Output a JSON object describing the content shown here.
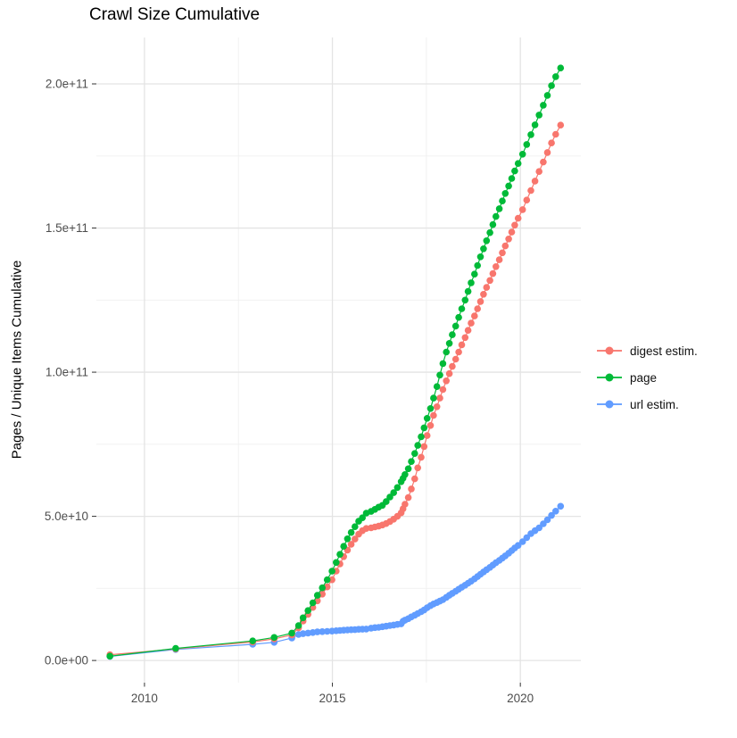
{
  "chart_data": {
    "type": "line",
    "title": "Crawl Size Cumulative",
    "xlabel": "",
    "ylabel": "Pages / Unique Items Cumulative",
    "legend_position": "right",
    "grid": true,
    "x_axis": {
      "tick_values": [
        2010,
        2015,
        2020
      ],
      "tick_labels": [
        "2010",
        "2015",
        "2020"
      ],
      "minor_tick_values": [
        2012.5,
        2017.5
      ],
      "range": [
        2008.72,
        2021.61
      ]
    },
    "y_axis": {
      "unit_note": "values stored in billions (1e9 items)",
      "tick_values_e9": [
        0,
        50,
        100,
        150,
        200
      ],
      "tick_labels": [
        "0.0e+00",
        "5.0e+10",
        "1.0e+11",
        "1.5e+11",
        "2.0e+11"
      ],
      "minor_tick_values_e9": [
        25,
        75,
        125,
        175
      ],
      "range_e9": [
        -7.7,
        216.1
      ]
    },
    "x": [
      2009.08,
      2010.83,
      2012.88,
      2013.45,
      2013.92,
      2014.1,
      2014.22,
      2014.35,
      2014.48,
      2014.6,
      2014.73,
      2014.86,
      2014.99,
      2015.1,
      2015.2,
      2015.3,
      2015.4,
      2015.5,
      2015.6,
      2015.7,
      2015.8,
      2015.9,
      2016.03,
      2016.13,
      2016.23,
      2016.33,
      2016.43,
      2016.53,
      2016.63,
      2016.73,
      2016.83,
      2016.88,
      2016.93,
      2017.02,
      2017.1,
      2017.19,
      2017.27,
      2017.36,
      2017.44,
      2017.52,
      2017.61,
      2017.69,
      2017.78,
      2017.86,
      2017.94,
      2018.03,
      2018.11,
      2018.19,
      2018.28,
      2018.36,
      2018.44,
      2018.53,
      2018.61,
      2018.69,
      2018.78,
      2018.86,
      2018.94,
      2019.02,
      2019.1,
      2019.19,
      2019.27,
      2019.35,
      2019.44,
      2019.52,
      2019.6,
      2019.69,
      2019.77,
      2019.85,
      2019.94,
      2020.06,
      2020.17,
      2020.28,
      2020.39,
      2020.5,
      2020.61,
      2020.72,
      2020.83,
      2020.94,
      2021.07
    ],
    "series": [
      {
        "name": "digest estim.",
        "color": "#F8766D",
        "values_e9": [
          2.0,
          4.0,
          6.4,
          7.5,
          8.9,
          11.3,
          13.7,
          16.0,
          18.4,
          20.7,
          23.0,
          25.5,
          28.0,
          31.0,
          33.5,
          36.0,
          38.3,
          40.3,
          42.1,
          43.8,
          45.0,
          45.8,
          46.0,
          46.3,
          46.6,
          47.0,
          47.5,
          48.2,
          49.0,
          50.0,
          51.2,
          52.6,
          54.2,
          56.5,
          59.5,
          63.0,
          66.8,
          70.5,
          74.2,
          78.0,
          81.5,
          85.0,
          88.0,
          91.0,
          94.0,
          97.0,
          99.5,
          102.0,
          104.5,
          107.0,
          109.5,
          112.0,
          114.5,
          117.0,
          119.5,
          122.0,
          124.5,
          127.0,
          129.4,
          131.8,
          134.2,
          136.6,
          139.0,
          141.4,
          143.8,
          146.2,
          148.6,
          151.0,
          153.4,
          156.4,
          159.7,
          163.0,
          166.3,
          169.6,
          172.9,
          176.2,
          179.5,
          182.5,
          185.7
        ]
      },
      {
        "name": "page",
        "color": "#00BA38",
        "values_e9": [
          1.5,
          4.2,
          6.8,
          8.0,
          9.5,
          12.1,
          14.8,
          17.3,
          20.0,
          22.6,
          25.2,
          28.0,
          31.0,
          34.0,
          36.8,
          39.6,
          42.2,
          44.4,
          46.4,
          48.3,
          49.5,
          51.1,
          51.7,
          52.4,
          53.2,
          53.8,
          55.1,
          56.7,
          58.2,
          60.0,
          62.0,
          63.2,
          64.5,
          66.5,
          69.0,
          71.8,
          74.6,
          77.6,
          80.7,
          84.0,
          87.4,
          91.0,
          95.0,
          99.0,
          103.0,
          107.0,
          110.0,
          113.0,
          116.0,
          119.0,
          122.0,
          125.0,
          128.0,
          131.0,
          134.0,
          137.0,
          140.0,
          142.8,
          145.6,
          148.4,
          151.2,
          154.0,
          156.7,
          159.4,
          162.0,
          164.6,
          167.2,
          169.8,
          172.4,
          175.6,
          179.0,
          182.4,
          185.8,
          189.2,
          192.6,
          196.0,
          199.4,
          202.5,
          205.5
        ]
      },
      {
        "name": "url estim.",
        "color": "#619CFF",
        "values_e9": [
          1.4,
          3.8,
          5.6,
          6.3,
          7.8,
          9.0,
          9.3,
          9.5,
          9.7,
          9.9,
          10.0,
          10.1,
          10.2,
          10.3,
          10.4,
          10.5,
          10.6,
          10.65,
          10.7,
          10.8,
          10.85,
          10.9,
          11.2,
          11.4,
          11.5,
          11.7,
          11.9,
          12.1,
          12.3,
          12.5,
          12.7,
          13.6,
          14.0,
          14.5,
          15.1,
          15.7,
          16.3,
          16.9,
          17.5,
          18.3,
          19.0,
          19.6,
          20.1,
          20.6,
          21.1,
          21.9,
          22.6,
          23.3,
          24.0,
          24.7,
          25.4,
          26.1,
          26.8,
          27.5,
          28.3,
          29.1,
          29.9,
          30.7,
          31.5,
          32.3,
          33.1,
          33.9,
          34.7,
          35.5,
          36.3,
          37.2,
          38.1,
          39.0,
          39.9,
          41.2,
          42.6,
          44.0,
          45.0,
          46.0,
          47.4,
          48.8,
          50.3,
          51.8,
          53.5
        ]
      }
    ]
  },
  "colors": {
    "background": "#ffffff",
    "grid_major": "#e4e4e4",
    "grid_minor": "#f0f0f0",
    "axis_tick": "#333333",
    "tick_text": "#4d4d4d",
    "title_text": "#000000"
  }
}
